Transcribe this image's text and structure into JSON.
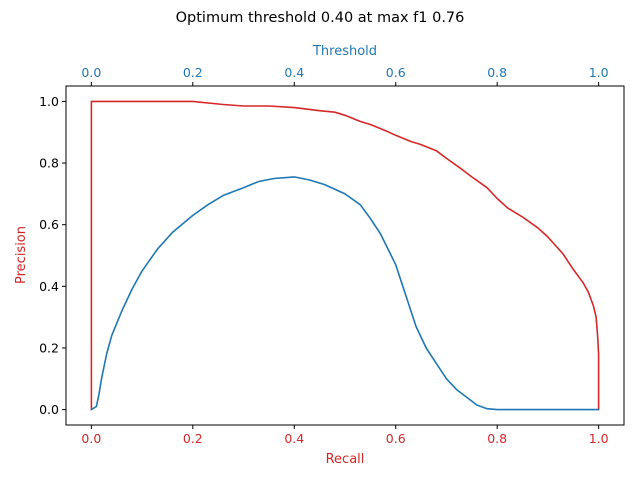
{
  "chart_data": {
    "type": "line",
    "title": "Optimum threshold 0.40 at max f1 0.76",
    "xlabel": "Recall",
    "ylabel": "Precision",
    "x2label": "Threshold",
    "xlim": [
      -0.05,
      1.05
    ],
    "ylim": [
      -0.05,
      1.05
    ],
    "x2lim": [
      -0.05,
      1.05
    ],
    "xticks": [
      "0.0",
      "0.2",
      "0.4",
      "0.6",
      "0.8",
      "1.0"
    ],
    "yticks": [
      "0.0",
      "0.2",
      "0.4",
      "0.6",
      "0.8",
      "1.0"
    ],
    "x2ticks": [
      "0.0",
      "0.2",
      "0.4",
      "0.6",
      "0.8",
      "1.0"
    ],
    "grid": false,
    "colors": {
      "precision_recall": "#d62728",
      "f1": "#1f77b4",
      "text": "#000000"
    },
    "series": [
      {
        "axes": "recall-precision",
        "color": "#d62728",
        "x": [
          0,
          0,
          0.002,
          0.05,
          0.1,
          0.15,
          0.2,
          0.23,
          0.26,
          0.3,
          0.35,
          0.4,
          0.45,
          0.48,
          0.5,
          0.53,
          0.55,
          0.58,
          0.6,
          0.63,
          0.65,
          0.68,
          0.7,
          0.73,
          0.75,
          0.78,
          0.8,
          0.82,
          0.85,
          0.88,
          0.9,
          0.93,
          0.95,
          0.97,
          0.98,
          0.99,
          0.995,
          0.998,
          1.0,
          1.0
        ],
        "y": [
          0,
          1.0,
          1.0,
          1.0,
          1.0,
          1.0,
          1.0,
          0.995,
          0.99,
          0.985,
          0.985,
          0.98,
          0.97,
          0.965,
          0.955,
          0.935,
          0.925,
          0.905,
          0.89,
          0.87,
          0.86,
          0.84,
          0.815,
          0.78,
          0.755,
          0.72,
          0.685,
          0.655,
          0.625,
          0.59,
          0.56,
          0.505,
          0.455,
          0.41,
          0.38,
          0.335,
          0.3,
          0.24,
          0.18,
          0
        ]
      },
      {
        "axes": "threshold-f1",
        "color": "#1f77b4",
        "x": [
          0,
          0.01,
          0.015,
          0.02,
          0.03,
          0.04,
          0.06,
          0.08,
          0.1,
          0.13,
          0.16,
          0.2,
          0.23,
          0.26,
          0.3,
          0.33,
          0.36,
          0.4,
          0.43,
          0.46,
          0.5,
          0.53,
          0.55,
          0.57,
          0.6,
          0.62,
          0.64,
          0.66,
          0.68,
          0.7,
          0.72,
          0.74,
          0.76,
          0.78,
          0.8,
          0.85,
          0.9,
          1.0
        ],
        "y": [
          0,
          0.01,
          0.05,
          0.1,
          0.18,
          0.24,
          0.32,
          0.39,
          0.45,
          0.52,
          0.575,
          0.63,
          0.665,
          0.695,
          0.72,
          0.74,
          0.75,
          0.755,
          0.745,
          0.73,
          0.7,
          0.665,
          0.62,
          0.57,
          0.47,
          0.37,
          0.27,
          0.2,
          0.15,
          0.1,
          0.065,
          0.04,
          0.015,
          0.003,
          0,
          0,
          0,
          0
        ]
      }
    ]
  }
}
